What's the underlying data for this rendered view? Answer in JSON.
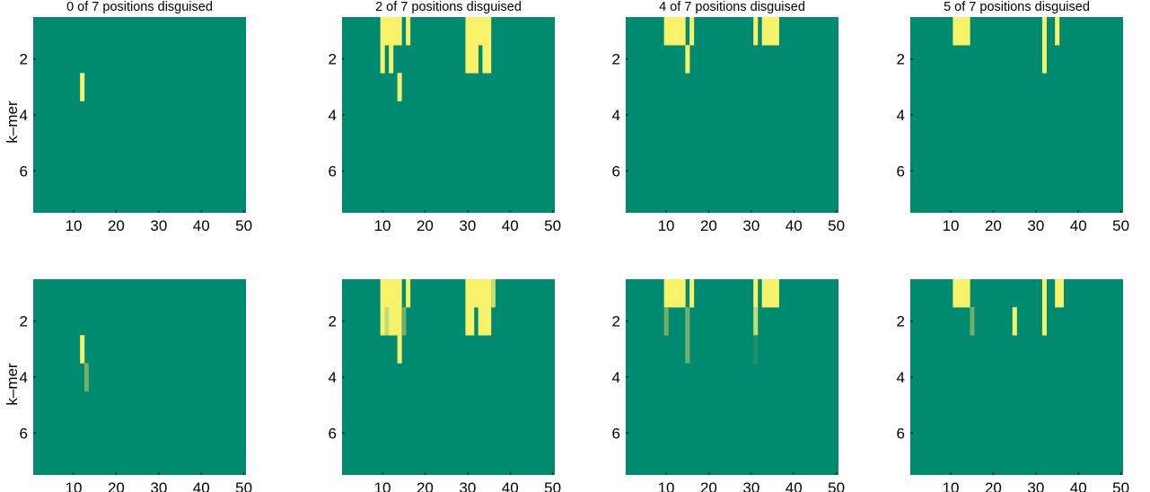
{
  "figure": {
    "ylabel": "k–mer",
    "xlabel": "position in sequence"
  },
  "colors": {
    "background": "#008a6f",
    "high": "#f7f26a",
    "mid_light": "#c3dc73",
    "mid": "#74ae68",
    "mid_dark": "#22906b"
  },
  "chart_data": [
    {
      "type": "heatmap",
      "title": "0 of 7 positions disguised",
      "xlabel": "",
      "ylabel": "k–mer",
      "xlim": [
        0.5,
        50.5
      ],
      "ylim": [
        0.5,
        7.5
      ],
      "y_reversed": true,
      "xticks": [
        10,
        20,
        30,
        40,
        50
      ],
      "yticks": [
        2,
        4,
        6
      ],
      "background": 0,
      "cells": [
        [
          12,
          3,
          1
        ]
      ]
    },
    {
      "type": "heatmap",
      "title": "2 of 7 positions disguised",
      "xlabel": "",
      "ylabel": "",
      "xlim": [
        0.5,
        50.5
      ],
      "ylim": [
        0.5,
        7.5
      ],
      "y_reversed": true,
      "xticks": [
        10,
        20,
        30,
        40,
        50
      ],
      "yticks": [
        2,
        4,
        6
      ],
      "background": 0,
      "cells": [
        [
          10,
          1,
          1
        ],
        [
          11,
          1,
          1
        ],
        [
          12,
          1,
          1
        ],
        [
          13,
          1,
          1
        ],
        [
          14,
          1,
          1
        ],
        [
          16,
          1,
          1
        ],
        [
          10,
          2,
          1
        ],
        [
          12,
          2,
          1
        ],
        [
          14,
          3,
          1
        ],
        [
          30,
          1,
          1
        ],
        [
          31,
          1,
          1
        ],
        [
          32,
          1,
          1
        ],
        [
          33,
          1,
          1
        ],
        [
          34,
          1,
          1
        ],
        [
          35,
          1,
          1
        ],
        [
          30,
          2,
          1
        ],
        [
          31,
          2,
          1
        ],
        [
          32,
          2,
          1
        ],
        [
          34,
          2,
          1
        ],
        [
          35,
          2,
          1
        ]
      ]
    },
    {
      "type": "heatmap",
      "title": "4 of 7 positions disguised",
      "xlabel": "",
      "ylabel": "",
      "xlim": [
        0.5,
        50.5
      ],
      "ylim": [
        0.5,
        7.5
      ],
      "y_reversed": true,
      "xticks": [
        10,
        20,
        30,
        40,
        50
      ],
      "yticks": [
        2,
        4,
        6
      ],
      "background": 0,
      "cells": [
        [
          10,
          1,
          1
        ],
        [
          11,
          1,
          1
        ],
        [
          12,
          1,
          1
        ],
        [
          13,
          1,
          1
        ],
        [
          14,
          1,
          1
        ],
        [
          16,
          1,
          1
        ],
        [
          15,
          2,
          1
        ],
        [
          31,
          1,
          1
        ],
        [
          33,
          1,
          1
        ],
        [
          34,
          1,
          1
        ],
        [
          35,
          1,
          1
        ],
        [
          36,
          1,
          1
        ]
      ]
    },
    {
      "type": "heatmap",
      "title": "5 of 7 positions disguised",
      "xlabel": "",
      "ylabel": "",
      "xlim": [
        0.5,
        50.5
      ],
      "ylim": [
        0.5,
        7.5
      ],
      "y_reversed": true,
      "xticks": [
        10,
        20,
        30,
        40,
        50
      ],
      "yticks": [
        2,
        4,
        6
      ],
      "background": 0,
      "cells": [
        [
          11,
          1,
          1
        ],
        [
          12,
          1,
          1
        ],
        [
          13,
          1,
          1
        ],
        [
          14,
          1,
          1
        ],
        [
          35,
          1,
          1
        ],
        [
          32,
          1,
          1
        ],
        [
          32,
          2,
          1
        ]
      ]
    },
    {
      "type": "heatmap",
      "title": "",
      "xlabel": "position in sequence",
      "ylabel": "k–mer",
      "xlim": [
        0.5,
        50.5
      ],
      "ylim": [
        0.5,
        7.5
      ],
      "y_reversed": true,
      "xticks": [
        10,
        20,
        30,
        40,
        50
      ],
      "yticks": [
        2,
        4,
        6
      ],
      "background": 0,
      "cells": [
        [
          12,
          3,
          1
        ],
        [
          13,
          4,
          0.45
        ]
      ]
    },
    {
      "type": "heatmap",
      "title": "",
      "xlabel": "position in sequence",
      "ylabel": "",
      "xlim": [
        0.5,
        50.5
      ],
      "ylim": [
        0.5,
        7.5
      ],
      "y_reversed": true,
      "xticks": [
        10,
        20,
        30,
        40,
        50
      ],
      "yticks": [
        2,
        4,
        6
      ],
      "background": 0,
      "cells": [
        [
          10,
          1,
          1
        ],
        [
          11,
          1,
          1
        ],
        [
          12,
          1,
          1
        ],
        [
          13,
          1,
          1
        ],
        [
          14,
          1,
          1
        ],
        [
          16,
          1,
          1
        ],
        [
          10,
          2,
          1
        ],
        [
          11,
          2,
          0.75
        ],
        [
          12,
          2,
          1
        ],
        [
          13,
          2,
          1
        ],
        [
          14,
          2,
          1
        ],
        [
          15,
          2,
          0.4
        ],
        [
          14,
          3,
          1
        ],
        [
          30,
          1,
          1
        ],
        [
          31,
          1,
          1
        ],
        [
          32,
          1,
          1
        ],
        [
          33,
          1,
          1
        ],
        [
          34,
          1,
          1
        ],
        [
          35,
          1,
          1
        ],
        [
          36,
          1,
          0.7
        ],
        [
          30,
          2,
          1
        ],
        [
          31,
          2,
          1
        ],
        [
          33,
          2,
          1
        ],
        [
          34,
          2,
          1
        ],
        [
          35,
          2,
          1
        ]
      ]
    },
    {
      "type": "heatmap",
      "title": "",
      "xlabel": "position in sequence",
      "ylabel": "",
      "xlim": [
        0.5,
        50.5
      ],
      "ylim": [
        0.5,
        7.5
      ],
      "y_reversed": true,
      "xticks": [
        10,
        20,
        30,
        40,
        50
      ],
      "yticks": [
        2,
        4,
        6
      ],
      "background": 0,
      "cells": [
        [
          10,
          1,
          1
        ],
        [
          11,
          1,
          1
        ],
        [
          12,
          1,
          1
        ],
        [
          13,
          1,
          1
        ],
        [
          14,
          1,
          1
        ],
        [
          16,
          1,
          1
        ],
        [
          10,
          2,
          0.55
        ],
        [
          15,
          2,
          0.5
        ],
        [
          15,
          3,
          0.5
        ],
        [
          31,
          1,
          1
        ],
        [
          33,
          1,
          1
        ],
        [
          34,
          1,
          1
        ],
        [
          35,
          1,
          1
        ],
        [
          36,
          1,
          1
        ],
        [
          31,
          2,
          0.75
        ],
        [
          31,
          3,
          0.15
        ]
      ]
    },
    {
      "type": "heatmap",
      "title": "",
      "xlabel": "position in sequence",
      "ylabel": "",
      "xlim": [
        0.5,
        50.5
      ],
      "ylim": [
        0.5,
        7.5
      ],
      "y_reversed": true,
      "xticks": [
        10,
        20,
        30,
        40,
        50
      ],
      "yticks": [
        2,
        4,
        6
      ],
      "background": 0,
      "cells": [
        [
          11,
          1,
          1
        ],
        [
          12,
          1,
          1
        ],
        [
          13,
          1,
          1
        ],
        [
          14,
          1,
          1
        ],
        [
          15,
          2,
          0.6
        ],
        [
          25,
          2,
          1
        ],
        [
          32,
          1,
          1
        ],
        [
          32,
          2,
          1
        ],
        [
          35,
          1,
          1
        ],
        [
          36,
          1,
          1
        ]
      ]
    }
  ]
}
